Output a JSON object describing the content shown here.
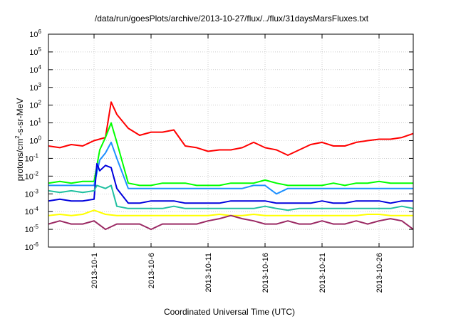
{
  "chart_data": {
    "type": "line",
    "title": "/data/run/goesPlots/archive/2013-10-27/flux/../flux/31daysMarsFluxes.txt",
    "xlabel": "Coordinated Universal Time (UTC)",
    "ylabel_prefix": "protons/cm",
    "ylabel_sup": "2",
    "ylabel_suffix": "-s-sr-MeV",
    "x_range": [
      "2013-09-27",
      "2013-10-29"
    ],
    "y_scale": "log",
    "ylim": [
      1e-06,
      1000000.0
    ],
    "grid": true,
    "x_ticks": [
      {
        "label": "2013-10-1",
        "date": "2013-10-01"
      },
      {
        "label": "2013-10-6",
        "date": "2013-10-06"
      },
      {
        "label": "2013-10-11",
        "date": "2013-10-11"
      },
      {
        "label": "2013-10-16",
        "date": "2013-10-16"
      },
      {
        "label": "2013-10-21",
        "date": "2013-10-21"
      },
      {
        "label": "2013-10-26",
        "date": "2013-10-26"
      }
    ],
    "y_ticks": [
      {
        "base": "10",
        "exp": "-6",
        "value": 1e-06
      },
      {
        "base": "10",
        "exp": "-5",
        "value": 1e-05
      },
      {
        "base": "10",
        "exp": "-4",
        "value": 0.0001
      },
      {
        "base": "10",
        "exp": "-3",
        "value": 0.001
      },
      {
        "base": "10",
        "exp": "-2",
        "value": 0.01
      },
      {
        "base": "10",
        "exp": "-1",
        "value": 0.1
      },
      {
        "base": "10",
        "exp": "0",
        "value": 1.0
      },
      {
        "base": "10",
        "exp": "1",
        "value": 10.0
      },
      {
        "base": "10",
        "exp": "2",
        "value": 100.0
      },
      {
        "base": "10",
        "exp": "3",
        "value": 1000.0
      },
      {
        "base": "10",
        "exp": "4",
        "value": 10000.0
      },
      {
        "base": "10",
        "exp": "5",
        "value": 100000.0
      },
      {
        "base": "10",
        "exp": "6",
        "value": 1000000.0
      }
    ],
    "series": [
      {
        "color": "#ff0000",
        "x": [
          "2013-09-27",
          "2013-09-28",
          "2013-09-29",
          "2013-09-30",
          "2013-10-01",
          "2013-10-02",
          "2013-10-02 12:00",
          "2013-10-03",
          "2013-10-04",
          "2013-10-05",
          "2013-10-06",
          "2013-10-07",
          "2013-10-08",
          "2013-10-09",
          "2013-10-10",
          "2013-10-11",
          "2013-10-12",
          "2013-10-13",
          "2013-10-14",
          "2013-10-15",
          "2013-10-16",
          "2013-10-17",
          "2013-10-18",
          "2013-10-19",
          "2013-10-20",
          "2013-10-21",
          "2013-10-22",
          "2013-10-23",
          "2013-10-24",
          "2013-10-25",
          "2013-10-26",
          "2013-10-27",
          "2013-10-28",
          "2013-10-29"
        ],
        "y": [
          0.5,
          0.4,
          0.6,
          0.5,
          1.0,
          1.5,
          150,
          30,
          5,
          2,
          3,
          3,
          4,
          0.5,
          0.4,
          0.25,
          0.3,
          0.3,
          0.4,
          0.8,
          0.4,
          0.3,
          0.15,
          0.3,
          0.6,
          0.8,
          0.5,
          0.5,
          0.8,
          1.0,
          1.2,
          1.2,
          1.5,
          2.5
        ]
      },
      {
        "color": "#00ff00",
        "x": [
          "2013-09-27",
          "2013-09-28",
          "2013-09-29",
          "2013-09-30",
          "2013-10-01",
          "2013-10-01 12:00",
          "2013-10-02",
          "2013-10-02 12:00",
          "2013-10-03",
          "2013-10-04",
          "2013-10-05",
          "2013-10-06",
          "2013-10-07",
          "2013-10-08",
          "2013-10-09",
          "2013-10-10",
          "2013-10-11",
          "2013-10-12",
          "2013-10-13",
          "2013-10-14",
          "2013-10-15",
          "2013-10-16",
          "2013-10-17",
          "2013-10-18",
          "2013-10-19",
          "2013-10-20",
          "2013-10-21",
          "2013-10-22",
          "2013-10-23",
          "2013-10-24",
          "2013-10-25",
          "2013-10-26",
          "2013-10-27",
          "2013-10-28",
          "2013-10-29"
        ],
        "y": [
          0.004,
          0.005,
          0.004,
          0.005,
          0.005,
          0.3,
          1.5,
          10,
          0.8,
          0.004,
          0.003,
          0.003,
          0.004,
          0.004,
          0.004,
          0.003,
          0.003,
          0.003,
          0.004,
          0.004,
          0.004,
          0.006,
          0.004,
          0.003,
          0.003,
          0.003,
          0.003,
          0.004,
          0.003,
          0.004,
          0.004,
          0.005,
          0.004,
          0.004,
          0.004
        ]
      },
      {
        "color": "#1e90ff",
        "x": [
          "2013-09-27",
          "2013-09-28",
          "2013-09-29",
          "2013-09-30",
          "2013-10-01",
          "2013-10-01 12:00",
          "2013-10-02",
          "2013-10-02 12:00",
          "2013-10-03",
          "2013-10-04",
          "2013-10-05",
          "2013-10-06",
          "2013-10-07",
          "2013-10-08",
          "2013-10-09",
          "2013-10-10",
          "2013-10-11",
          "2013-10-12",
          "2013-10-13",
          "2013-10-14",
          "2013-10-15",
          "2013-10-16",
          "2013-10-17",
          "2013-10-18",
          "2013-10-19",
          "2013-10-20",
          "2013-10-21",
          "2013-10-22",
          "2013-10-23",
          "2013-10-24",
          "2013-10-25",
          "2013-10-26",
          "2013-10-27",
          "2013-10-28",
          "2013-10-29"
        ],
        "y": [
          0.003,
          0.003,
          0.003,
          0.003,
          0.003,
          0.08,
          0.2,
          0.8,
          0.1,
          0.002,
          0.002,
          0.002,
          0.002,
          0.002,
          0.002,
          0.002,
          0.002,
          0.002,
          0.002,
          0.002,
          0.003,
          0.003,
          0.001,
          0.002,
          0.002,
          0.002,
          0.002,
          0.002,
          0.002,
          0.002,
          0.002,
          0.002,
          0.002,
          0.002,
          0.002
        ]
      },
      {
        "color": "#0000dd",
        "x": [
          "2013-09-27",
          "2013-09-28",
          "2013-09-29",
          "2013-09-30",
          "2013-10-01",
          "2013-10-01 06:00",
          "2013-10-01 12:00",
          "2013-10-02",
          "2013-10-02 12:00",
          "2013-10-03",
          "2013-10-04",
          "2013-10-05",
          "2013-10-06",
          "2013-10-07",
          "2013-10-08",
          "2013-10-09",
          "2013-10-10",
          "2013-10-11",
          "2013-10-12",
          "2013-10-13",
          "2013-10-14",
          "2013-10-15",
          "2013-10-16",
          "2013-10-17",
          "2013-10-18",
          "2013-10-19",
          "2013-10-20",
          "2013-10-21",
          "2013-10-22",
          "2013-10-23",
          "2013-10-24",
          "2013-10-25",
          "2013-10-26",
          "2013-10-27",
          "2013-10-28",
          "2013-10-29"
        ],
        "y": [
          0.0004,
          0.0005,
          0.0004,
          0.0004,
          0.0005,
          0.05,
          0.02,
          0.04,
          0.03,
          0.002,
          0.0003,
          0.0003,
          0.0004,
          0.0004,
          0.0004,
          0.0003,
          0.0003,
          0.0003,
          0.0003,
          0.0004,
          0.0004,
          0.0004,
          0.0004,
          0.0003,
          0.0003,
          0.0003,
          0.0003,
          0.0004,
          0.0003,
          0.0003,
          0.0004,
          0.0004,
          0.0004,
          0.0003,
          0.0004,
          0.0004
        ]
      },
      {
        "color": "#20c0a0",
        "x": [
          "2013-09-27",
          "2013-09-28",
          "2013-09-29",
          "2013-09-30",
          "2013-10-01",
          "2013-10-01 06:00",
          "2013-10-02",
          "2013-10-02 12:00",
          "2013-10-03",
          "2013-10-04",
          "2013-10-05",
          "2013-10-06",
          "2013-10-07",
          "2013-10-08",
          "2013-10-09",
          "2013-10-10",
          "2013-10-11",
          "2013-10-12",
          "2013-10-13",
          "2013-10-14",
          "2013-10-15",
          "2013-10-16",
          "2013-10-17",
          "2013-10-18",
          "2013-10-19",
          "2013-10-20",
          "2013-10-21",
          "2013-10-22",
          "2013-10-23",
          "2013-10-24",
          "2013-10-25",
          "2013-10-26",
          "2013-10-27",
          "2013-10-28",
          "2013-10-29"
        ],
        "y": [
          0.0015,
          0.0012,
          0.0015,
          0.0012,
          0.0015,
          0.003,
          0.002,
          0.003,
          0.0002,
          0.00015,
          0.00015,
          0.00015,
          0.00015,
          0.0002,
          0.00015,
          0.00015,
          0.00015,
          0.00015,
          0.00015,
          0.00015,
          0.00015,
          0.0002,
          0.00015,
          0.00012,
          0.00015,
          0.00015,
          0.00015,
          0.00015,
          0.00015,
          0.00015,
          0.00015,
          0.00015,
          0.00015,
          0.0002,
          0.00015
        ]
      },
      {
        "color": "#ffff00",
        "x": [
          "2013-09-27",
          "2013-09-28",
          "2013-09-29",
          "2013-09-30",
          "2013-10-01",
          "2013-10-02",
          "2013-10-03",
          "2013-10-04",
          "2013-10-05",
          "2013-10-06",
          "2013-10-07",
          "2013-10-08",
          "2013-10-09",
          "2013-10-10",
          "2013-10-11",
          "2013-10-12",
          "2013-10-13",
          "2013-10-14",
          "2013-10-15",
          "2013-10-16",
          "2013-10-17",
          "2013-10-18",
          "2013-10-19",
          "2013-10-20",
          "2013-10-21",
          "2013-10-22",
          "2013-10-23",
          "2013-10-24",
          "2013-10-25",
          "2013-10-26",
          "2013-10-27",
          "2013-10-28",
          "2013-10-29"
        ],
        "y": [
          6e-05,
          7e-05,
          6e-05,
          7e-05,
          0.00012,
          7e-05,
          6e-05,
          6e-05,
          6e-05,
          6e-05,
          6e-05,
          6e-05,
          6e-05,
          6e-05,
          6e-05,
          7e-05,
          6e-05,
          6e-05,
          7e-05,
          6e-05,
          6e-05,
          6e-05,
          6e-05,
          6e-05,
          6e-05,
          6e-05,
          6e-05,
          6e-05,
          7e-05,
          7e-05,
          6e-05,
          6e-05,
          6e-05
        ]
      },
      {
        "color": "#9b2a64",
        "x": [
          "2013-09-27",
          "2013-09-28",
          "2013-09-29",
          "2013-09-30",
          "2013-10-01",
          "2013-10-02",
          "2013-10-03",
          "2013-10-04",
          "2013-10-05",
          "2013-10-06",
          "2013-10-07",
          "2013-10-08",
          "2013-10-09",
          "2013-10-10",
          "2013-10-11",
          "2013-10-12",
          "2013-10-13",
          "2013-10-14",
          "2013-10-15",
          "2013-10-16",
          "2013-10-17",
          "2013-10-18",
          "2013-10-19",
          "2013-10-20",
          "2013-10-21",
          "2013-10-22",
          "2013-10-23",
          "2013-10-24",
          "2013-10-25",
          "2013-10-26",
          "2013-10-27",
          "2013-10-28",
          "2013-10-29"
        ],
        "y": [
          2e-05,
          3e-05,
          2e-05,
          2e-05,
          3e-05,
          1e-05,
          2e-05,
          2e-05,
          2e-05,
          1e-05,
          2e-05,
          2e-05,
          2e-05,
          2e-05,
          3e-05,
          4e-05,
          6e-05,
          4e-05,
          3e-05,
          2e-05,
          2e-05,
          3e-05,
          2e-05,
          2e-05,
          3e-05,
          2e-05,
          2e-05,
          3e-05,
          2e-05,
          3e-05,
          4e-05,
          3e-05,
          1e-05
        ]
      }
    ]
  }
}
